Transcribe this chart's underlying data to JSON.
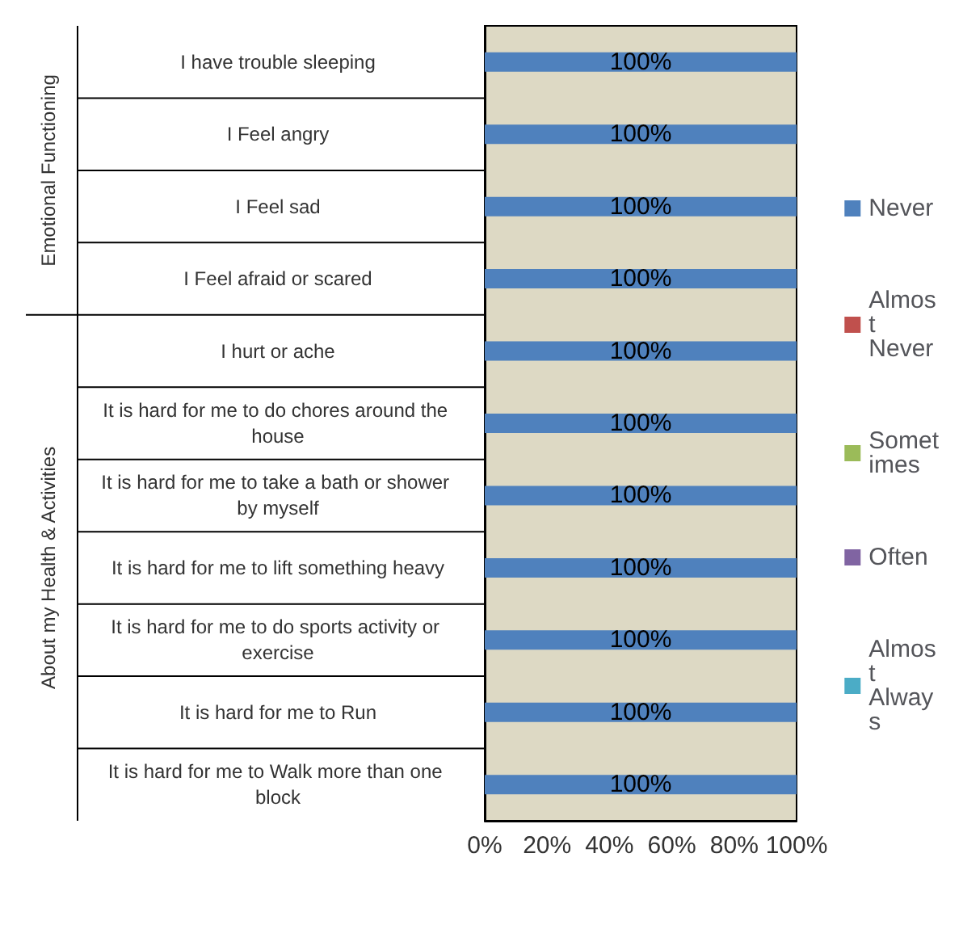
{
  "chart_data": {
    "type": "bar",
    "orientation": "horizontal",
    "stacked": true,
    "categories": [
      "I have trouble sleeping",
      "I Feel angry",
      "I Feel sad",
      "I Feel afraid or scared",
      "I hurt or ache",
      "It is hard for me to do chores around the house",
      "It is hard for me to take a bath or shower by myself",
      "It is hard for me to lift something heavy",
      "It is hard for me to do sports activity or exercise",
      "It is hard for me to Run",
      "It is hard for me to Walk more than one block"
    ],
    "series": [
      {
        "name": "Never",
        "color": "#4f81bd",
        "values": [
          100,
          100,
          100,
          100,
          100,
          100,
          100,
          100,
          100,
          100,
          100
        ],
        "value_labels": [
          "100%",
          "100%",
          "100%",
          "100%",
          "100%",
          "100%",
          "100%",
          "100%",
          "100%",
          "100%",
          "100%"
        ]
      },
      {
        "name": "Almost Never",
        "color": "#c0504d",
        "values": [
          0,
          0,
          0,
          0,
          0,
          0,
          0,
          0,
          0,
          0,
          0
        ]
      },
      {
        "name": "Sometimes",
        "color": "#9bbb59",
        "values": [
          0,
          0,
          0,
          0,
          0,
          0,
          0,
          0,
          0,
          0,
          0
        ]
      },
      {
        "name": "Often",
        "color": "#8064a2",
        "values": [
          0,
          0,
          0,
          0,
          0,
          0,
          0,
          0,
          0,
          0,
          0
        ]
      },
      {
        "name": "Almost Always",
        "color": "#4bacc6",
        "values": [
          0,
          0,
          0,
          0,
          0,
          0,
          0,
          0,
          0,
          0,
          0
        ]
      }
    ],
    "xlim": [
      0,
      100
    ],
    "xticks": [
      {
        "value": 0,
        "label": "0%"
      },
      {
        "value": 20,
        "label": "20%"
      },
      {
        "value": 40,
        "label": "40%"
      },
      {
        "value": 60,
        "label": "60%"
      },
      {
        "value": 80,
        "label": "80%"
      },
      {
        "value": 100,
        "label": "100%"
      }
    ],
    "grid": false,
    "legend": "right",
    "annotations": [
      "Emotional Functioning",
      "About my Health & Activities"
    ]
  }
}
